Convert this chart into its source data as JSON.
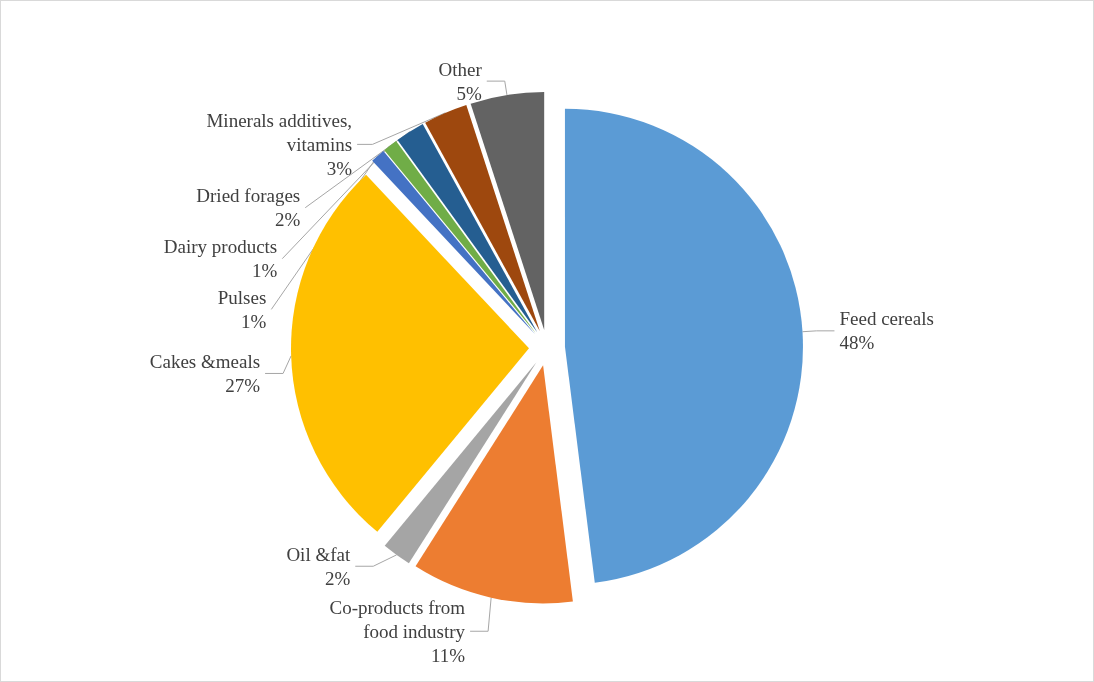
{
  "chart_data": {
    "type": "pie",
    "categories": [
      "Feed cereals",
      "Co-products from food industry",
      "Oil &fat",
      "Cakes &meals",
      "Pulses",
      "Dairy products",
      "Dried forages",
      "Minerals additives, vitamins",
      "Other"
    ],
    "values": [
      48,
      11,
      2,
      27,
      1,
      1,
      2,
      3,
      5
    ],
    "colors": [
      "#5b9bd5",
      "#ed7d31",
      "#a5a5a5",
      "#ffc000",
      "#4472c4",
      "#70ad47",
      "#255e91",
      "#9e480e",
      "#636363"
    ],
    "value_labels": [
      "48%",
      "11%",
      "2%",
      "27%",
      "1%",
      "1%",
      "2%",
      "3%",
      "5%"
    ],
    "legend": false
  }
}
